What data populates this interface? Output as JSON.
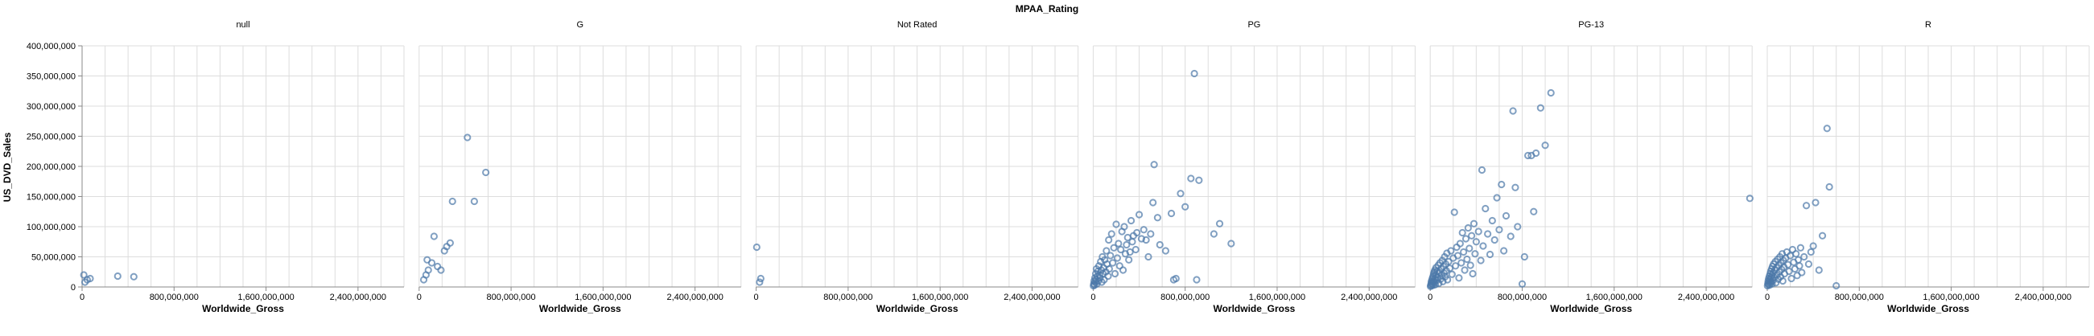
{
  "chart_data": {
    "type": "scatter",
    "facet_field": "MPAA_Rating",
    "xlabel": "Worldwide_Gross",
    "ylabel": "US_DVD_Sales",
    "xlim": [
      0,
      2800000000
    ],
    "ylim": [
      0,
      400000000
    ],
    "x_ticks": [
      "0",
      "800,000,000",
      "1,600,000,000",
      "2,400,000,000"
    ],
    "y_ticks": [
      "0",
      "50,000,000",
      "100,000,000",
      "150,000,000",
      "200,000,000",
      "250,000,000",
      "300,000,000",
      "350,000,000",
      "400,000,000"
    ],
    "grid": true,
    "point_color": "#4c78a8",
    "facets": [
      {
        "name": "null",
        "points": [
          [
            15000000,
            20000000
          ],
          [
            25000000,
            8000000
          ],
          [
            45000000,
            12000000
          ],
          [
            70000000,
            14000000
          ],
          [
            310000000,
            18000000
          ],
          [
            450000000,
            17000000
          ]
        ]
      },
      {
        "name": "G",
        "points": [
          [
            40000000,
            12000000
          ],
          [
            60000000,
            20000000
          ],
          [
            70000000,
            45000000
          ],
          [
            80000000,
            28000000
          ],
          [
            110000000,
            40000000
          ],
          [
            130000000,
            84000000
          ],
          [
            160000000,
            34000000
          ],
          [
            190000000,
            28000000
          ],
          [
            220000000,
            60000000
          ],
          [
            240000000,
            67000000
          ],
          [
            270000000,
            73000000
          ],
          [
            290000000,
            142000000
          ],
          [
            420000000,
            248000000
          ],
          [
            480000000,
            142000000
          ],
          [
            580000000,
            190000000
          ]
        ]
      },
      {
        "name": "Not Rated",
        "points": [
          [
            5000000,
            66000000
          ],
          [
            30000000,
            8000000
          ],
          [
            40000000,
            14000000
          ]
        ]
      },
      {
        "name": "PG",
        "points": [
          [
            2000000,
            2000000
          ],
          [
            5000000,
            5000000
          ],
          [
            8000000,
            10000000
          ],
          [
            12000000,
            3000000
          ],
          [
            15000000,
            15000000
          ],
          [
            18000000,
            8000000
          ],
          [
            22000000,
            22000000
          ],
          [
            25000000,
            12000000
          ],
          [
            28000000,
            30000000
          ],
          [
            32000000,
            5000000
          ],
          [
            36000000,
            18000000
          ],
          [
            40000000,
            26000000
          ],
          [
            45000000,
            10000000
          ],
          [
            50000000,
            35000000
          ],
          [
            55000000,
            20000000
          ],
          [
            60000000,
            15000000
          ],
          [
            65000000,
            42000000
          ],
          [
            70000000,
            28000000
          ],
          [
            75000000,
            8000000
          ],
          [
            80000000,
            50000000
          ],
          [
            85000000,
            22000000
          ],
          [
            90000000,
            32000000
          ],
          [
            95000000,
            12000000
          ],
          [
            100000000,
            45000000
          ],
          [
            110000000,
            25000000
          ],
          [
            115000000,
            60000000
          ],
          [
            120000000,
            38000000
          ],
          [
            130000000,
            18000000
          ],
          [
            135000000,
            78000000
          ],
          [
            140000000,
            30000000
          ],
          [
            150000000,
            52000000
          ],
          [
            160000000,
            88000000
          ],
          [
            170000000,
            40000000
          ],
          [
            180000000,
            65000000
          ],
          [
            190000000,
            22000000
          ],
          [
            200000000,
            104000000
          ],
          [
            210000000,
            48000000
          ],
          [
            220000000,
            72000000
          ],
          [
            230000000,
            35000000
          ],
          [
            240000000,
            62000000
          ],
          [
            250000000,
            92000000
          ],
          [
            260000000,
            28000000
          ],
          [
            270000000,
            100000000
          ],
          [
            280000000,
            55000000
          ],
          [
            290000000,
            70000000
          ],
          [
            300000000,
            82000000
          ],
          [
            310000000,
            45000000
          ],
          [
            320000000,
            58000000
          ],
          [
            330000000,
            110000000
          ],
          [
            340000000,
            75000000
          ],
          [
            350000000,
            85000000
          ],
          [
            370000000,
            62000000
          ],
          [
            380000000,
            90000000
          ],
          [
            400000000,
            120000000
          ],
          [
            420000000,
            80000000
          ],
          [
            440000000,
            95000000
          ],
          [
            460000000,
            78000000
          ],
          [
            480000000,
            50000000
          ],
          [
            500000000,
            88000000
          ],
          [
            520000000,
            140000000
          ],
          [
            530000000,
            203000000
          ],
          [
            560000000,
            115000000
          ],
          [
            580000000,
            70000000
          ],
          [
            630000000,
            60000000
          ],
          [
            680000000,
            122000000
          ],
          [
            700000000,
            12000000
          ],
          [
            720000000,
            14000000
          ],
          [
            760000000,
            155000000
          ],
          [
            800000000,
            133000000
          ],
          [
            850000000,
            180000000
          ],
          [
            880000000,
            354000000
          ],
          [
            900000000,
            12000000
          ],
          [
            920000000,
            177000000
          ],
          [
            1050000000,
            88000000
          ],
          [
            1100000000,
            105000000
          ],
          [
            1200000000,
            72000000
          ]
        ]
      },
      {
        "name": "PG-13",
        "points": [
          [
            2000000,
            1000000
          ],
          [
            5000000,
            3000000
          ],
          [
            8000000,
            6000000
          ],
          [
            10000000,
            9000000
          ],
          [
            12000000,
            2000000
          ],
          [
            15000000,
            12000000
          ],
          [
            18000000,
            5000000
          ],
          [
            20000000,
            15000000
          ],
          [
            22000000,
            8000000
          ],
          [
            25000000,
            18000000
          ],
          [
            28000000,
            3000000
          ],
          [
            30000000,
            22000000
          ],
          [
            32000000,
            10000000
          ],
          [
            35000000,
            25000000
          ],
          [
            38000000,
            7000000
          ],
          [
            40000000,
            28000000
          ],
          [
            42000000,
            14000000
          ],
          [
            45000000,
            4000000
          ],
          [
            48000000,
            20000000
          ],
          [
            50000000,
            32000000
          ],
          [
            55000000,
            11000000
          ],
          [
            60000000,
            26000000
          ],
          [
            65000000,
            16000000
          ],
          [
            70000000,
            36000000
          ],
          [
            75000000,
            6000000
          ],
          [
            80000000,
            24000000
          ],
          [
            85000000,
            40000000
          ],
          [
            90000000,
            13000000
          ],
          [
            95000000,
            30000000
          ],
          [
            100000000,
            19000000
          ],
          [
            105000000,
            44000000
          ],
          [
            110000000,
            9000000
          ],
          [
            115000000,
            34000000
          ],
          [
            120000000,
            23000000
          ],
          [
            125000000,
            50000000
          ],
          [
            130000000,
            17000000
          ],
          [
            135000000,
            38000000
          ],
          [
            140000000,
            27000000
          ],
          [
            145000000,
            56000000
          ],
          [
            150000000,
            12000000
          ],
          [
            160000000,
            42000000
          ],
          [
            170000000,
            31000000
          ],
          [
            180000000,
            60000000
          ],
          [
            190000000,
            21000000
          ],
          [
            200000000,
            48000000
          ],
          [
            210000000,
            124000000
          ],
          [
            220000000,
            35000000
          ],
          [
            230000000,
            66000000
          ],
          [
            240000000,
            52000000
          ],
          [
            250000000,
            15000000
          ],
          [
            260000000,
            72000000
          ],
          [
            270000000,
            40000000
          ],
          [
            280000000,
            90000000
          ],
          [
            290000000,
            58000000
          ],
          [
            300000000,
            28000000
          ],
          [
            310000000,
            80000000
          ],
          [
            320000000,
            46000000
          ],
          [
            330000000,
            98000000
          ],
          [
            340000000,
            64000000
          ],
          [
            350000000,
            36000000
          ],
          [
            360000000,
            85000000
          ],
          [
            370000000,
            22000000
          ],
          [
            380000000,
            105000000
          ],
          [
            390000000,
            55000000
          ],
          [
            400000000,
            75000000
          ],
          [
            420000000,
            92000000
          ],
          [
            440000000,
            44000000
          ],
          [
            450000000,
            194000000
          ],
          [
            460000000,
            68000000
          ],
          [
            480000000,
            130000000
          ],
          [
            500000000,
            88000000
          ],
          [
            520000000,
            54000000
          ],
          [
            540000000,
            110000000
          ],
          [
            560000000,
            78000000
          ],
          [
            580000000,
            148000000
          ],
          [
            600000000,
            95000000
          ],
          [
            620000000,
            170000000
          ],
          [
            640000000,
            60000000
          ],
          [
            660000000,
            118000000
          ],
          [
            700000000,
            84000000
          ],
          [
            720000000,
            292000000
          ],
          [
            740000000,
            165000000
          ],
          [
            760000000,
            100000000
          ],
          [
            800000000,
            5000000
          ],
          [
            820000000,
            50000000
          ],
          [
            850000000,
            218000000
          ],
          [
            880000000,
            218000000
          ],
          [
            900000000,
            125000000
          ],
          [
            920000000,
            222000000
          ],
          [
            960000000,
            297000000
          ],
          [
            1000000000,
            235000000
          ],
          [
            1050000000,
            322000000
          ],
          [
            2780000000,
            147000000
          ]
        ]
      },
      {
        "name": "R",
        "points": [
          [
            2000000,
            2000000
          ],
          [
            5000000,
            6000000
          ],
          [
            8000000,
            10000000
          ],
          [
            10000000,
            4000000
          ],
          [
            12000000,
            14000000
          ],
          [
            15000000,
            8000000
          ],
          [
            18000000,
            18000000
          ],
          [
            20000000,
            3000000
          ],
          [
            22000000,
            12000000
          ],
          [
            25000000,
            22000000
          ],
          [
            28000000,
            6000000
          ],
          [
            30000000,
            26000000
          ],
          [
            32000000,
            15000000
          ],
          [
            35000000,
            9000000
          ],
          [
            38000000,
            30000000
          ],
          [
            40000000,
            19000000
          ],
          [
            42000000,
            5000000
          ],
          [
            45000000,
            34000000
          ],
          [
            48000000,
            23000000
          ],
          [
            50000000,
            11000000
          ],
          [
            55000000,
            38000000
          ],
          [
            60000000,
            16000000
          ],
          [
            65000000,
            28000000
          ],
          [
            70000000,
            42000000
          ],
          [
            75000000,
            7000000
          ],
          [
            80000000,
            32000000
          ],
          [
            85000000,
            20000000
          ],
          [
            90000000,
            46000000
          ],
          [
            95000000,
            13000000
          ],
          [
            100000000,
            36000000
          ],
          [
            105000000,
            25000000
          ],
          [
            110000000,
            50000000
          ],
          [
            115000000,
            17000000
          ],
          [
            120000000,
            40000000
          ],
          [
            125000000,
            29000000
          ],
          [
            130000000,
            55000000
          ],
          [
            135000000,
            10000000
          ],
          [
            140000000,
            44000000
          ],
          [
            145000000,
            33000000
          ],
          [
            150000000,
            22000000
          ],
          [
            160000000,
            48000000
          ],
          [
            170000000,
            58000000
          ],
          [
            180000000,
            37000000
          ],
          [
            190000000,
            26000000
          ],
          [
            200000000,
            52000000
          ],
          [
            210000000,
            14000000
          ],
          [
            220000000,
            62000000
          ],
          [
            230000000,
            41000000
          ],
          [
            240000000,
            30000000
          ],
          [
            250000000,
            55000000
          ],
          [
            260000000,
            19000000
          ],
          [
            270000000,
            45000000
          ],
          [
            280000000,
            35000000
          ],
          [
            290000000,
            65000000
          ],
          [
            300000000,
            24000000
          ],
          [
            320000000,
            50000000
          ],
          [
            340000000,
            135000000
          ],
          [
            360000000,
            38000000
          ],
          [
            380000000,
            58000000
          ],
          [
            400000000,
            68000000
          ],
          [
            420000000,
            140000000
          ],
          [
            450000000,
            28000000
          ],
          [
            480000000,
            85000000
          ],
          [
            520000000,
            263000000
          ],
          [
            540000000,
            166000000
          ],
          [
            600000000,
            2000000
          ]
        ]
      }
    ]
  }
}
